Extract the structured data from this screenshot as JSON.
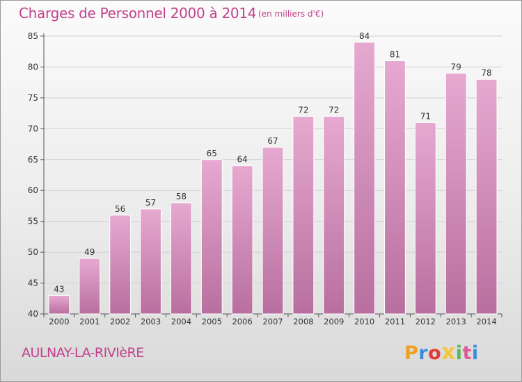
{
  "title": "Charges de Personnel 2000 à 2014",
  "subtitle": "(en milliers d'€)",
  "city": "AULNAY-LA-RIVIèRE",
  "brand": "Proxiti",
  "colors": {
    "accent": "#c2418c",
    "bar_top": "#e6a9d0",
    "bar_bottom": "#b86f9f",
    "logo_letters": [
      "#f0a020",
      "#3a8fd8",
      "#e53935",
      "#f6c63a",
      "#5cb85c",
      "#e05a9a",
      "#3a8fd8"
    ]
  },
  "chart_data": {
    "type": "bar",
    "categories": [
      "2000",
      "2001",
      "2002",
      "2003",
      "2004",
      "2005",
      "2006",
      "2007",
      "2008",
      "2009",
      "2010",
      "2011",
      "2012",
      "2013",
      "2014"
    ],
    "values": [
      43,
      49,
      56,
      57,
      58,
      65,
      64,
      67,
      72,
      72,
      84,
      81,
      71,
      79,
      78
    ],
    "data_labels": [
      "43",
      "49",
      "56",
      "57",
      "58",
      "65",
      "64",
      "67",
      "72",
      "72",
      "84",
      "81",
      "71",
      "79",
      "78"
    ],
    "ylim": [
      40,
      85
    ],
    "yticks": [
      40,
      45,
      50,
      55,
      60,
      65,
      70,
      75,
      80,
      85
    ],
    "grid": true,
    "xlabel": "",
    "ylabel": ""
  }
}
